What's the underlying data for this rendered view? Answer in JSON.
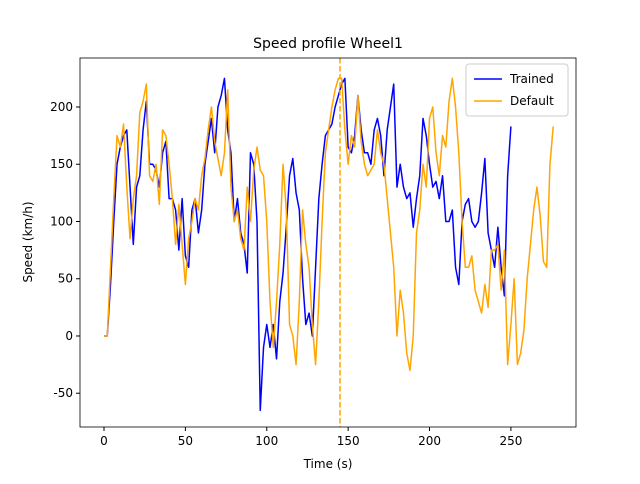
{
  "chart_data": {
    "type": "line",
    "title": "Speed profile Wheel1",
    "x_label": "Time (s)",
    "y_label": "Speed (km/h)",
    "xlim": [
      -14.75,
      290
    ],
    "ylim": [
      -79.5,
      242.8
    ],
    "xticks": [
      0,
      50,
      100,
      150,
      200,
      250
    ],
    "yticks": [
      -50,
      0,
      50,
      100,
      150,
      200
    ],
    "legend": "upper right",
    "vline": {
      "x": 145,
      "color": "#ffa500"
    },
    "series": [
      {
        "name": "Trained",
        "color": "#0000ff",
        "x": [
          0,
          2,
          4,
          6,
          8,
          10,
          12,
          14,
          16,
          18,
          20,
          22,
          24,
          26,
          28,
          30,
          32,
          34,
          36,
          38,
          40,
          42,
          44,
          46,
          48,
          50,
          52,
          54,
          56,
          58,
          60,
          62,
          64,
          66,
          68,
          70,
          72,
          74,
          76,
          78,
          80,
          82,
          84,
          86,
          88,
          90,
          92,
          94,
          96,
          98,
          100,
          102,
          104,
          106,
          108,
          110,
          112,
          114,
          116,
          118,
          120,
          122,
          124,
          126,
          128,
          130,
          132,
          134,
          136,
          138,
          140,
          142,
          144,
          146,
          148,
          150,
          152,
          154,
          156,
          158,
          160,
          162,
          164,
          166,
          168,
          170,
          172,
          174,
          176,
          178,
          180,
          182,
          184,
          186,
          188,
          190,
          192,
          194,
          196,
          198,
          200,
          202,
          204,
          206,
          208,
          210,
          212,
          214,
          216,
          218,
          220,
          222,
          224,
          226,
          228,
          230,
          232,
          234,
          236,
          238,
          240,
          242,
          244,
          246,
          248,
          250
        ],
        "values": [
          0,
          0,
          45,
          100,
          150,
          165,
          175,
          180,
          130,
          80,
          130,
          140,
          180,
          205,
          150,
          150,
          145,
          130,
          160,
          170,
          120,
          120,
          110,
          75,
          120,
          70,
          60,
          110,
          120,
          90,
          110,
          150,
          170,
          190,
          160,
          200,
          210,
          225,
          180,
          160,
          100,
          120,
          90,
          80,
          55,
          160,
          150,
          100,
          -65,
          -10,
          10,
          -10,
          10,
          -20,
          30,
          55,
          95,
          140,
          155,
          125,
          110,
          50,
          10,
          20,
          0,
          60,
          120,
          150,
          175,
          180,
          185,
          200,
          210,
          220,
          225,
          165,
          160,
          175,
          210,
          180,
          160,
          160,
          150,
          180,
          190,
          175,
          140,
          180,
          200,
          220,
          130,
          150,
          130,
          120,
          125,
          95,
          120,
          140,
          190,
          175,
          150,
          130,
          135,
          120,
          140,
          100,
          100,
          110,
          60,
          45,
          100,
          115,
          120,
          100,
          95,
          100,
          125,
          155,
          90,
          75,
          60,
          95,
          60,
          35,
          140,
          183
        ]
      },
      {
        "name": "Default",
        "color": "#ffa500",
        "x": [
          0,
          2,
          4,
          6,
          8,
          10,
          12,
          14,
          16,
          18,
          20,
          22,
          24,
          26,
          28,
          30,
          32,
          34,
          36,
          38,
          40,
          42,
          44,
          46,
          48,
          50,
          52,
          54,
          56,
          58,
          60,
          62,
          64,
          66,
          68,
          70,
          72,
          74,
          76,
          78,
          80,
          82,
          84,
          86,
          88,
          90,
          92,
          94,
          96,
          98,
          100,
          102,
          104,
          106,
          108,
          110,
          112,
          114,
          116,
          118,
          120,
          122,
          124,
          126,
          128,
          130,
          132,
          134,
          136,
          138,
          140,
          142,
          144,
          146,
          148,
          150,
          152,
          154,
          156,
          158,
          160,
          162,
          164,
          166,
          168,
          170,
          172,
          174,
          176,
          178,
          180,
          182,
          184,
          186,
          188,
          190,
          192,
          194,
          196,
          198,
          200,
          202,
          204,
          206,
          208,
          210,
          212,
          214,
          216,
          218,
          220,
          222,
          224,
          226,
          228,
          230,
          232,
          234,
          236,
          238,
          240,
          242,
          244,
          246,
          248,
          250,
          252,
          254,
          256,
          258,
          260,
          262,
          264,
          266,
          268,
          270,
          272,
          274,
          276
        ],
        "values": [
          0,
          0,
          60,
          120,
          175,
          165,
          185,
          130,
          85,
          120,
          140,
          195,
          205,
          220,
          140,
          135,
          150,
          115,
          180,
          175,
          150,
          120,
          80,
          115,
          80,
          45,
          85,
          100,
          120,
          110,
          140,
          155,
          180,
          200,
          170,
          155,
          140,
          160,
          215,
          130,
          100,
          110,
          85,
          75,
          130,
          100,
          145,
          165,
          145,
          140,
          100,
          30,
          -10,
          30,
          80,
          150,
          110,
          10,
          0,
          -25,
          30,
          110,
          80,
          60,
          10,
          -25,
          30,
          100,
          160,
          180,
          200,
          215,
          225,
          225,
          180,
          150,
          175,
          165,
          210,
          170,
          150,
          140,
          145,
          150,
          180,
          160,
          150,
          120,
          90,
          60,
          0,
          40,
          20,
          -15,
          -30,
          0,
          90,
          110,
          150,
          130,
          190,
          200,
          160,
          140,
          175,
          165,
          205,
          225,
          200,
          160,
          100,
          60,
          60,
          70,
          40,
          30,
          20,
          45,
          25,
          75,
          75,
          80,
          40,
          75,
          -25,
          10,
          50,
          -25,
          -15,
          5,
          50,
          80,
          110,
          130,
          105,
          65,
          60,
          150,
          183
        ]
      }
    ]
  }
}
